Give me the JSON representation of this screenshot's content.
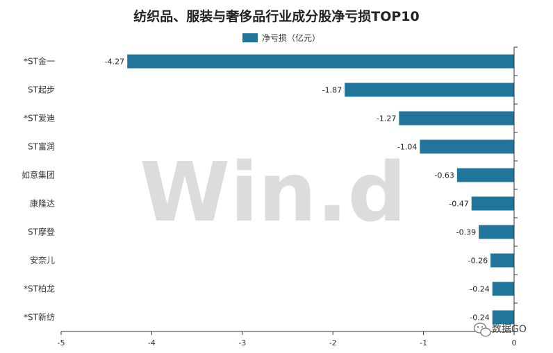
{
  "chart_data": {
    "type": "bar",
    "orientation": "horizontal",
    "title": "纺织品、服装与奢侈品行业成分股净亏损TOP10",
    "categories": [
      "*ST金一",
      "ST起步",
      "*ST爱迪",
      "ST富润",
      "如意集团",
      "康隆达",
      "ST摩登",
      "安奈儿",
      "*ST柏龙",
      "*ST新纺"
    ],
    "series": [
      {
        "name": "净亏损（亿元）",
        "values": [
          -4.27,
          -1.87,
          -1.27,
          -1.04,
          -0.63,
          -0.47,
          -0.39,
          -0.26,
          -0.24,
          -0.24
        ],
        "labels": [
          "-4.27",
          "-1.87",
          "-1.27",
          "-1.04",
          "-0.63",
          "-0.47",
          "-0.39",
          "-0.26",
          "-0.24",
          "-0.24"
        ]
      }
    ],
    "xlim": [
      -5,
      0
    ],
    "xticks": [
      "-5",
      "-4",
      "-3",
      "-2",
      "-1",
      "0"
    ],
    "legend_position": "top-center",
    "grid": false,
    "colors": {
      "bar": "#21759b",
      "axis": "#333333"
    }
  },
  "watermark": {
    "text": "Win.d",
    "color": "#dcdcdc"
  },
  "source_badge": {
    "icon": "wechat-icon",
    "text": "数据GO"
  }
}
